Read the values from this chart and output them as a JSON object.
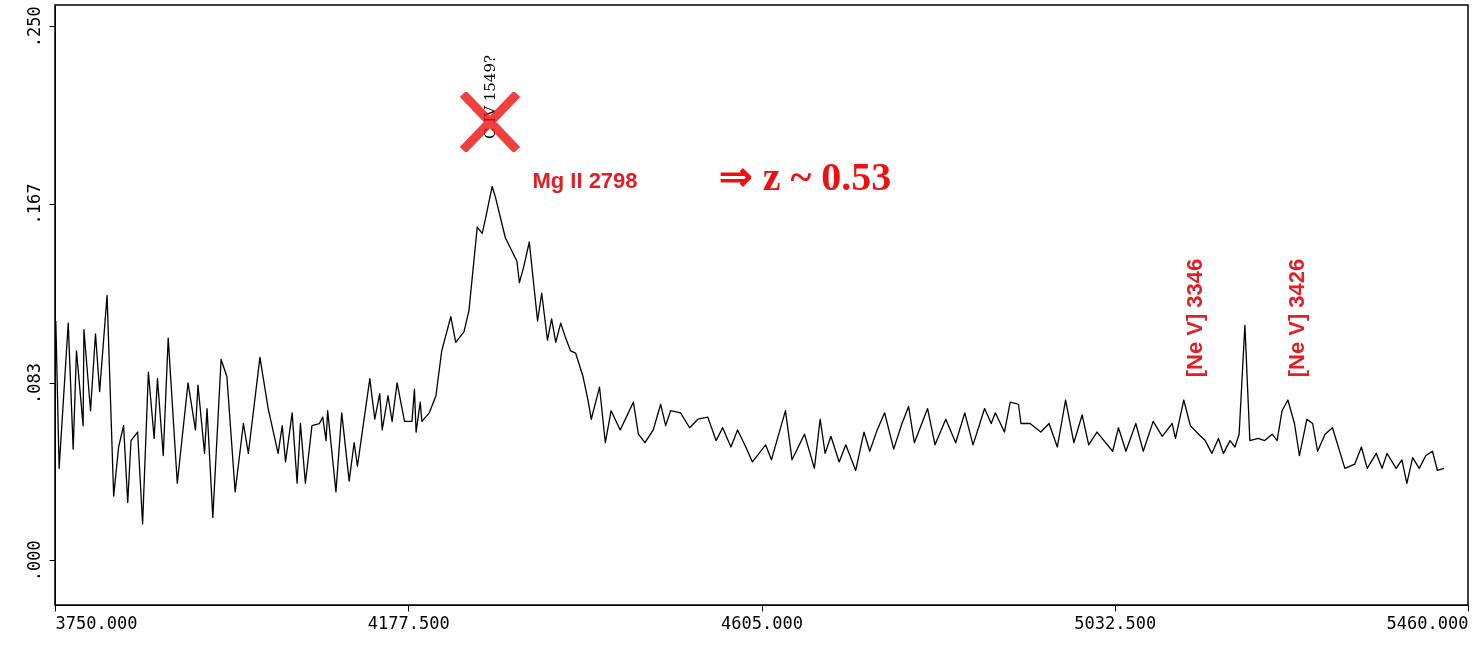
{
  "chart_data": {
    "type": "line",
    "grid": false,
    "xlim": [
      3750,
      5460
    ],
    "ylim": [
      -0.021,
      0.26
    ],
    "xticks": [
      {
        "value": 3750,
        "label": "3750.000"
      },
      {
        "value": 4177.5,
        "label": "4177.500"
      },
      {
        "value": 4605,
        "label": "4605.000"
      },
      {
        "value": 5032.5,
        "label": "5032.500"
      },
      {
        "value": 5460,
        "label": "5460.000"
      }
    ],
    "yticks": [
      {
        "value": 0,
        "label": ".000"
      },
      {
        "value": 0.083,
        "label": ".083"
      },
      {
        "value": 0.167,
        "label": ".167"
      },
      {
        "value": 0.25,
        "label": ".250"
      }
    ],
    "annotations": [
      "C IV 1549?",
      "Mg II 2798",
      "⇒ z ~ 0.53",
      "[Ne V] 3346",
      "[Ne V] 3426"
    ],
    "series": [
      {
        "color": "#000000",
        "x": [
          3751,
          3755,
          3766,
          3772,
          3776,
          3784,
          3785,
          3793,
          3799,
          3804,
          3813,
          3821,
          3827,
          3833,
          3838,
          3842,
          3850,
          3856,
          3863,
          3870,
          3874,
          3881,
          3887,
          3898,
          3911,
          3920,
          3923,
          3931,
          3934,
          3941,
          3951,
          3958,
          3968,
          3978,
          3984,
          3998,
          4008,
          4020,
          4025,
          4029,
          4037,
          4043,
          4047,
          4053,
          4061,
          4070,
          4074,
          4078,
          4080,
          4090,
          4097,
          4106,
          4112,
          4116,
          4131,
          4137,
          4143,
          4146,
          4153,
          4158,
          4164,
          4173,
          4182,
          4185,
          4187,
          4192,
          4194,
          4203,
          4211,
          4218,
          4229,
          4235,
          4245,
          4251,
          4261,
          4267,
          4271,
          4279,
          4283,
          4295,
          4309,
          4312,
          4317,
          4324,
          4334,
          4339,
          4346,
          4351,
          4356,
          4362,
          4368,
          4374,
          4380,
          4389,
          4395,
          4399,
          4409,
          4416,
          4423,
          4434,
          4450,
          4456,
          4464,
          4474,
          4483,
          4489,
          4495,
          4507,
          4518,
          4528,
          4540,
          4550,
          4558,
          4568,
          4576,
          4586,
          4594,
          4610,
          4617,
          4634,
          4642,
          4657,
          4669,
          4676,
          4682,
          4689,
          4699,
          4707,
          4719,
          4729,
          4736,
          4745,
          4754,
          4765,
          4775,
          4783,
          4790,
          4806,
          4815,
          4828,
          4840,
          4851,
          4861,
          4875,
          4883,
          4888,
          4899,
          4906,
          4916,
          4919,
          4930,
          4943,
          4953,
          4963,
          4973,
          4983,
          4993,
          5001,
          5011,
          5030,
          5037,
          5046,
          5058,
          5067,
          5079,
          5090,
          5102,
          5106,
          5116,
          5124,
          5134,
          5142,
          5150,
          5158,
          5164,
          5172,
          5178,
          5183,
          5190,
          5196,
          5206,
          5214,
          5223,
          5229,
          5235,
          5242,
          5250,
          5256,
          5265,
          5272,
          5278,
          5287,
          5296,
          5311,
          5323,
          5331,
          5338,
          5349,
          5356,
          5362,
          5373,
          5380,
          5386,
          5393,
          5401,
          5409,
          5417,
          5423,
          5431
        ],
        "values": [
          0.112,
          0.043,
          0.111,
          0.052,
          0.098,
          0.063,
          0.108,
          0.07,
          0.106,
          0.079,
          0.124,
          0.03,
          0.053,
          0.063,
          0.027,
          0.056,
          0.06,
          0.017,
          0.088,
          0.057,
          0.085,
          0.049,
          0.104,
          0.036,
          0.083,
          0.061,
          0.082,
          0.05,
          0.071,
          0.02,
          0.094,
          0.086,
          0.032,
          0.064,
          0.05,
          0.095,
          0.071,
          0.05,
          0.063,
          0.046,
          0.069,
          0.036,
          0.064,
          0.036,
          0.063,
          0.064,
          0.067,
          0.056,
          0.07,
          0.032,
          0.069,
          0.037,
          0.055,
          0.044,
          0.085,
          0.066,
          0.078,
          0.061,
          0.077,
          0.065,
          0.083,
          0.065,
          0.065,
          0.08,
          0.06,
          0.074,
          0.065,
          0.069,
          0.077,
          0.098,
          0.114,
          0.102,
          0.107,
          0.117,
          0.156,
          0.153,
          0.16,
          0.175,
          0.17,
          0.151,
          0.14,
          0.13,
          0.137,
          0.149,
          0.112,
          0.125,
          0.103,
          0.113,
          0.102,
          0.111,
          0.104,
          0.098,
          0.097,
          0.086,
          0.075,
          0.066,
          0.081,
          0.055,
          0.07,
          0.061,
          0.074,
          0.059,
          0.055,
          0.061,
          0.073,
          0.063,
          0.07,
          0.069,
          0.062,
          0.066,
          0.067,
          0.056,
          0.062,
          0.053,
          0.061,
          0.053,
          0.046,
          0.054,
          0.047,
          0.07,
          0.047,
          0.059,
          0.043,
          0.066,
          0.05,
          0.058,
          0.046,
          0.054,
          0.042,
          0.06,
          0.051,
          0.061,
          0.069,
          0.052,
          0.064,
          0.072,
          0.055,
          0.071,
          0.054,
          0.066,
          0.055,
          0.069,
          0.054,
          0.071,
          0.064,
          0.069,
          0.06,
          0.074,
          0.073,
          0.064,
          0.064,
          0.06,
          0.064,
          0.053,
          0.075,
          0.055,
          0.068,
          0.054,
          0.06,
          0.051,
          0.062,
          0.051,
          0.064,
          0.051,
          0.065,
          0.058,
          0.064,
          0.057,
          0.075,
          0.063,
          0.059,
          0.056,
          0.05,
          0.057,
          0.05,
          0.056,
          0.053,
          0.059,
          0.11,
          0.056,
          0.057,
          0.056,
          0.059,
          0.056,
          0.07,
          0.075,
          0.064,
          0.049,
          0.066,
          0.064,
          0.051,
          0.059,
          0.062,
          0.043,
          0.045,
          0.053,
          0.043,
          0.05,
          0.043,
          0.05,
          0.043,
          0.047,
          0.036,
          0.048,
          0.043,
          0.049,
          0.051,
          0.042,
          0.043
        ]
      }
    ]
  }
}
